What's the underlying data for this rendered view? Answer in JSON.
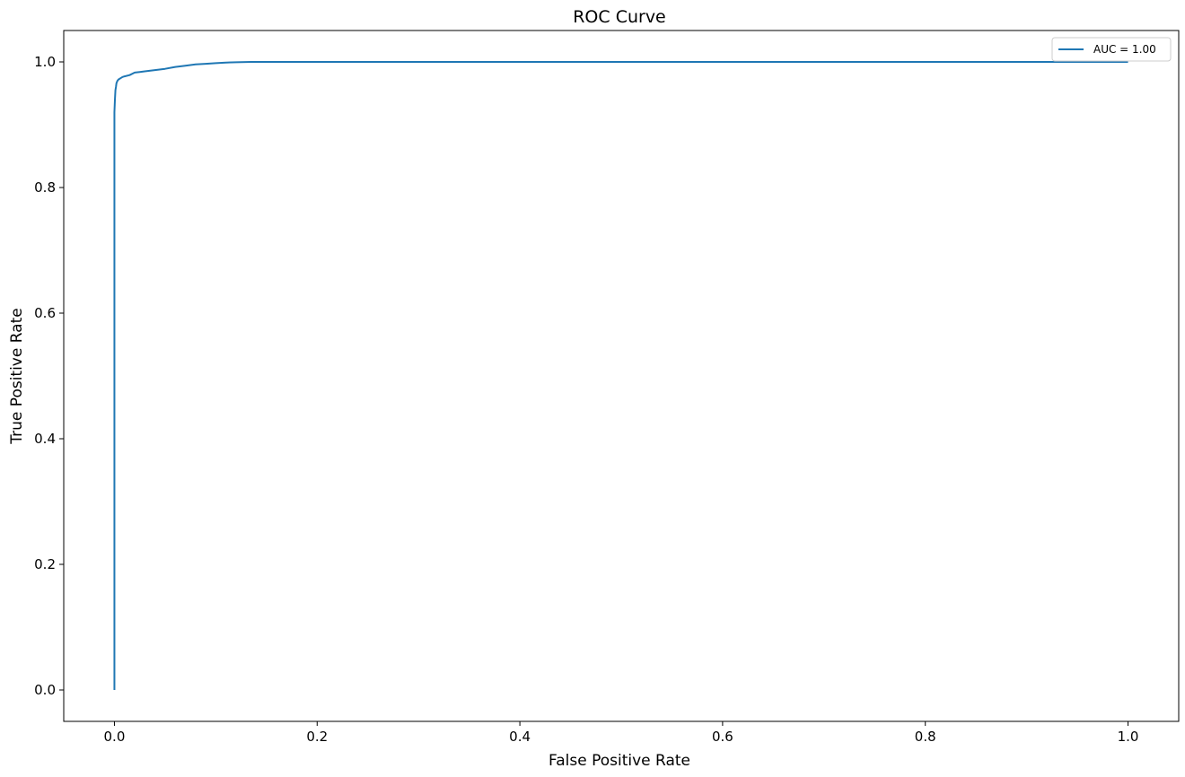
{
  "chart_data": {
    "type": "line",
    "title": "ROC Curve",
    "xlabel": "False Positive Rate",
    "ylabel": "True Positive Rate",
    "xlim": [
      -0.05,
      1.05
    ],
    "ylim": [
      -0.05,
      1.05
    ],
    "xticks": [
      0.0,
      0.2,
      0.4,
      0.6,
      0.8,
      1.0
    ],
    "yticks": [
      0.0,
      0.2,
      0.4,
      0.6,
      0.8,
      1.0
    ],
    "xtick_labels": [
      "0.0",
      "0.2",
      "0.4",
      "0.6",
      "0.8",
      "1.0"
    ],
    "ytick_labels": [
      "0.0",
      "0.2",
      "0.4",
      "0.6",
      "0.8",
      "1.0"
    ],
    "grid": false,
    "legend": {
      "position": "top-right",
      "entries": [
        "AUC = 1.00"
      ]
    },
    "series": [
      {
        "name": "AUC = 1.00",
        "color": "#1f77b4",
        "x": [
          0.0,
          0.0,
          0.0,
          0.0005,
          0.001,
          0.0015,
          0.002,
          0.003,
          0.004,
          0.006,
          0.008,
          0.01,
          0.015,
          0.02,
          0.025,
          0.03,
          0.04,
          0.05,
          0.06,
          0.07,
          0.08,
          0.09,
          0.1,
          0.11,
          0.12,
          0.135,
          0.2,
          0.4,
          0.6,
          0.8,
          1.0
        ],
        "y": [
          0.0,
          0.85,
          0.92,
          0.94,
          0.955,
          0.96,
          0.966,
          0.97,
          0.972,
          0.974,
          0.976,
          0.977,
          0.979,
          0.983,
          0.984,
          0.985,
          0.987,
          0.989,
          0.992,
          0.994,
          0.996,
          0.997,
          0.998,
          0.999,
          0.9995,
          1.0,
          1.0,
          1.0,
          1.0,
          1.0,
          1.0
        ]
      }
    ]
  }
}
